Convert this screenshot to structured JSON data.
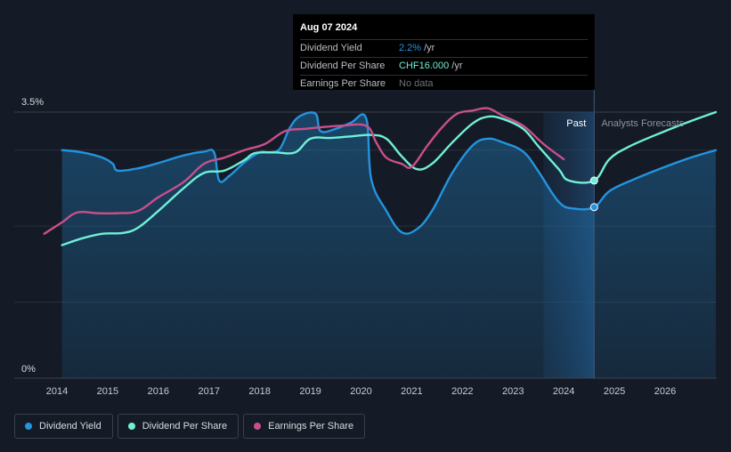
{
  "tooltip": {
    "date": "Aug 07 2024",
    "rows": [
      {
        "name": "Dividend Yield",
        "value": "2.2%",
        "unit": "/yr",
        "color": "#2394df"
      },
      {
        "name": "Dividend Per Share",
        "value": "CHF16.000",
        "unit": "/yr",
        "color": "#6ff0d6"
      },
      {
        "name": "Earnings Per Share",
        "value": "No data",
        "unit": "",
        "color": "#6c727c"
      }
    ]
  },
  "regions": {
    "past": "Past",
    "forecast": "Analysts Forecasts"
  },
  "legend": [
    {
      "label": "Dividend Yield",
      "color": "#2394df"
    },
    {
      "label": "Dividend Per Share",
      "color": "#6ff0d6"
    },
    {
      "label": "Earnings Per Share",
      "color": "#c94f8c"
    }
  ],
  "chart_data": {
    "type": "line",
    "y_axis": {
      "min_label": "0%",
      "max_label": "3.5%",
      "ylim": [
        0,
        3.5
      ],
      "unit": "%"
    },
    "x_axis": {
      "ticks": [
        "2014",
        "2015",
        "2016",
        "2017",
        "2018",
        "2019",
        "2020",
        "2021",
        "2022",
        "2023",
        "2024",
        "2025",
        "2026"
      ],
      "xlim": [
        2013.7,
        2027.0
      ]
    },
    "past_region_start": 2023.6,
    "cursor_date": 2024.6,
    "grid": true,
    "legend_position": "bottom-left",
    "series": [
      {
        "name": "Dividend Yield",
        "color": "#2394df",
        "filled": true,
        "points": [
          [
            2014.1,
            3.0
          ],
          [
            2014.5,
            2.97
          ],
          [
            2014.9,
            2.9
          ],
          [
            2015.1,
            2.82
          ],
          [
            2015.2,
            2.73
          ],
          [
            2015.6,
            2.76
          ],
          [
            2016.0,
            2.83
          ],
          [
            2016.5,
            2.93
          ],
          [
            2016.9,
            2.98
          ],
          [
            2017.1,
            2.97
          ],
          [
            2017.2,
            2.6
          ],
          [
            2017.4,
            2.66
          ],
          [
            2017.7,
            2.84
          ],
          [
            2018.0,
            2.97
          ],
          [
            2018.2,
            2.97
          ],
          [
            2018.4,
            3.02
          ],
          [
            2018.6,
            3.3
          ],
          [
            2018.8,
            3.45
          ],
          [
            2019.1,
            3.48
          ],
          [
            2019.2,
            3.25
          ],
          [
            2019.5,
            3.28
          ],
          [
            2019.8,
            3.36
          ],
          [
            2020.1,
            3.42
          ],
          [
            2020.2,
            2.62
          ],
          [
            2020.5,
            2.2
          ],
          [
            2020.8,
            1.92
          ],
          [
            2021.1,
            1.96
          ],
          [
            2021.4,
            2.2
          ],
          [
            2021.8,
            2.7
          ],
          [
            2022.2,
            3.06
          ],
          [
            2022.5,
            3.15
          ],
          [
            2022.8,
            3.1
          ],
          [
            2023.2,
            2.98
          ],
          [
            2023.5,
            2.72
          ],
          [
            2023.9,
            2.32
          ],
          [
            2024.2,
            2.23
          ],
          [
            2024.6,
            2.25
          ],
          [
            2024.9,
            2.46
          ],
          [
            2025.4,
            2.62
          ],
          [
            2026.0,
            2.78
          ],
          [
            2026.5,
            2.9
          ],
          [
            2027.0,
            3.0
          ]
        ]
      },
      {
        "name": "Dividend Per Share",
        "color": "#6ff0d6",
        "filled": false,
        "points": [
          [
            2014.1,
            1.75
          ],
          [
            2014.5,
            1.84
          ],
          [
            2014.9,
            1.9
          ],
          [
            2015.3,
            1.91
          ],
          [
            2015.6,
            1.98
          ],
          [
            2016.0,
            2.2
          ],
          [
            2016.5,
            2.5
          ],
          [
            2016.9,
            2.7
          ],
          [
            2017.3,
            2.73
          ],
          [
            2017.7,
            2.87
          ],
          [
            2017.9,
            2.96
          ],
          [
            2018.3,
            2.97
          ],
          [
            2018.7,
            2.97
          ],
          [
            2019.0,
            3.15
          ],
          [
            2019.4,
            3.16
          ],
          [
            2019.8,
            3.18
          ],
          [
            2020.2,
            3.2
          ],
          [
            2020.5,
            3.15
          ],
          [
            2020.8,
            2.92
          ],
          [
            2021.1,
            2.75
          ],
          [
            2021.4,
            2.82
          ],
          [
            2021.8,
            3.1
          ],
          [
            2022.2,
            3.35
          ],
          [
            2022.5,
            3.44
          ],
          [
            2022.8,
            3.41
          ],
          [
            2023.2,
            3.28
          ],
          [
            2023.5,
            3.05
          ],
          [
            2023.9,
            2.75
          ],
          [
            2024.1,
            2.6
          ],
          [
            2024.6,
            2.6
          ],
          [
            2024.9,
            2.88
          ],
          [
            2025.3,
            3.05
          ],
          [
            2026.0,
            3.25
          ],
          [
            2026.5,
            3.38
          ],
          [
            2027.0,
            3.5
          ]
        ]
      },
      {
        "name": "Earnings Per Share",
        "color": "#c94f8c",
        "filled": false,
        "points": [
          [
            2013.75,
            1.9
          ],
          [
            2014.1,
            2.05
          ],
          [
            2014.4,
            2.18
          ],
          [
            2014.8,
            2.17
          ],
          [
            2015.2,
            2.17
          ],
          [
            2015.6,
            2.2
          ],
          [
            2016.0,
            2.38
          ],
          [
            2016.5,
            2.58
          ],
          [
            2016.9,
            2.82
          ],
          [
            2017.3,
            2.9
          ],
          [
            2017.7,
            3.0
          ],
          [
            2018.1,
            3.08
          ],
          [
            2018.5,
            3.25
          ],
          [
            2018.9,
            3.28
          ],
          [
            2019.2,
            3.3
          ],
          [
            2019.6,
            3.32
          ],
          [
            2020.1,
            3.32
          ],
          [
            2020.3,
            3.1
          ],
          [
            2020.5,
            2.9
          ],
          [
            2020.8,
            2.82
          ],
          [
            2021.0,
            2.78
          ],
          [
            2021.3,
            3.05
          ],
          [
            2021.6,
            3.3
          ],
          [
            2021.9,
            3.48
          ],
          [
            2022.2,
            3.52
          ],
          [
            2022.5,
            3.55
          ],
          [
            2022.8,
            3.45
          ],
          [
            2023.2,
            3.32
          ],
          [
            2023.6,
            3.08
          ],
          [
            2024.0,
            2.88
          ]
        ]
      }
    ],
    "markers": [
      {
        "series": "Dividend Per Share",
        "x": 2024.6,
        "y": 2.6
      },
      {
        "series": "Dividend Yield",
        "x": 2024.6,
        "y": 2.25
      }
    ]
  }
}
